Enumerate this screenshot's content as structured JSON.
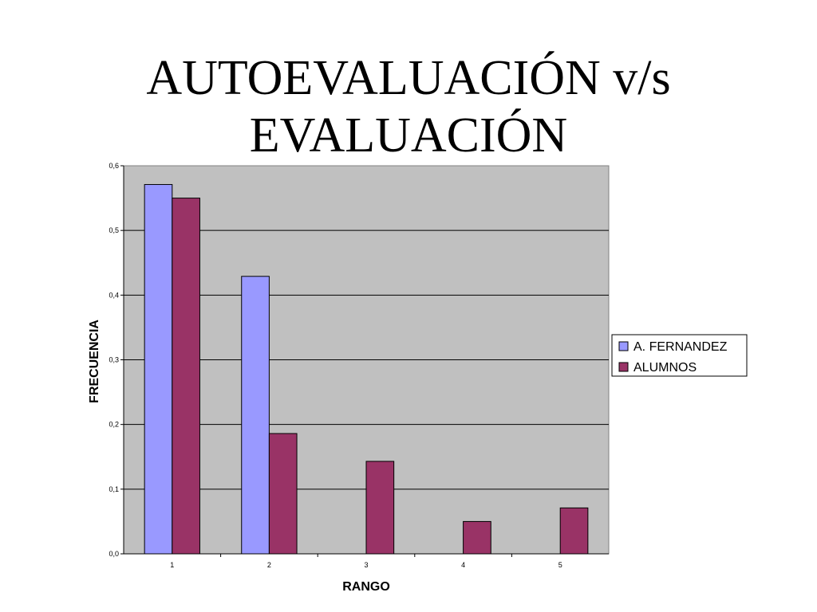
{
  "chart_data": {
    "type": "bar",
    "title": "AUTOEVALUACIÓN v/s EVALUACIÓN",
    "xlabel": "RANGO",
    "ylabel": "FRECUENCIA",
    "categories": [
      "1",
      "2",
      "3",
      "4",
      "5"
    ],
    "series": [
      {
        "name": "A. FERNANDEZ",
        "color": "#9999ff",
        "values": [
          0.571,
          0.429,
          0,
          0,
          0
        ]
      },
      {
        "name": "ALUMNOS",
        "color": "#993366",
        "values": [
          0.55,
          0.186,
          0.143,
          0.05,
          0.071
        ]
      }
    ],
    "ylim": [
      0,
      0.6
    ],
    "yticks": [
      "0,0",
      "0,1",
      "0,2",
      "0,3",
      "0,4",
      "0,5",
      "0,6"
    ],
    "grid": true,
    "plot_background": "#c0c0c0",
    "legend_position": "right"
  }
}
